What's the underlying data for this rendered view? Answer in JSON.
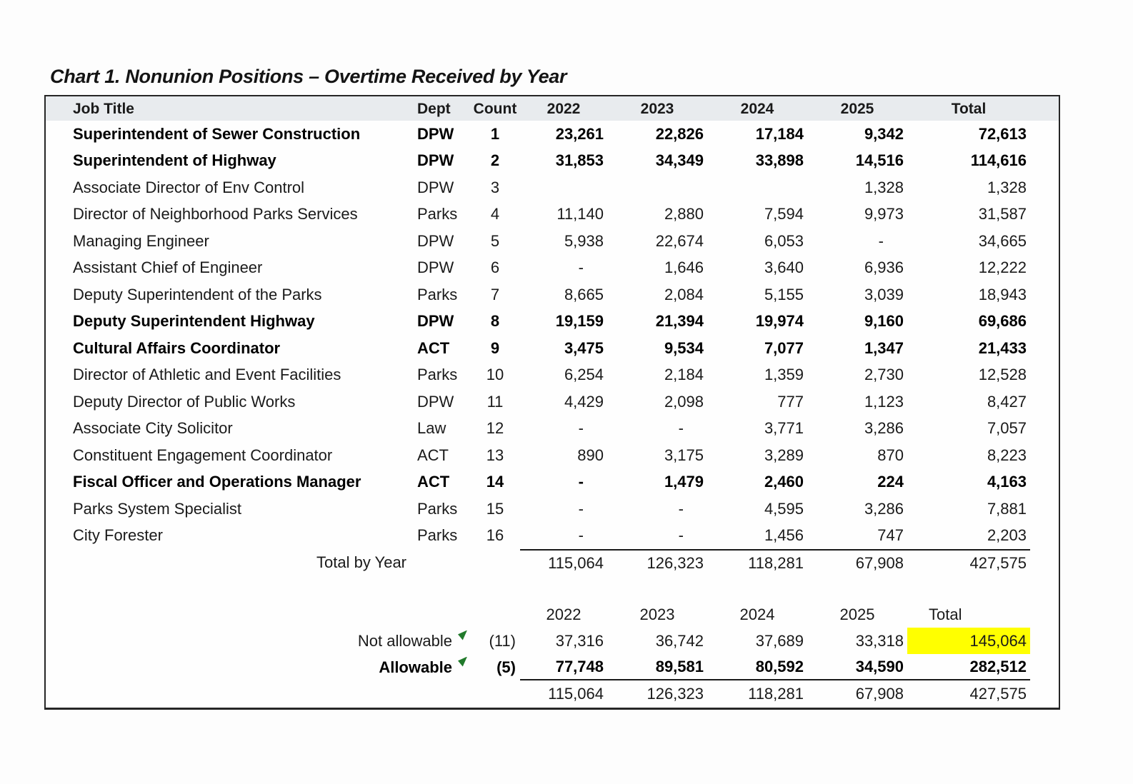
{
  "title": "Chart 1. Nonunion Positions – Overtime Received by Year",
  "table": {
    "columns": [
      "Job Title",
      "Dept",
      "Count",
      "2022",
      "2023",
      "2024",
      "2025",
      "Total"
    ],
    "rows": [
      {
        "job_title": "Superintendent of Sewer Construction",
        "dept": "DPW",
        "count": "1",
        "y2022": "23,261",
        "y2023": "22,826",
        "y2024": "17,184",
        "y2025": "9,342",
        "total": "72,613",
        "bold": true
      },
      {
        "job_title": "Superintendent of Highway",
        "dept": "DPW",
        "count": "2",
        "y2022": "31,853",
        "y2023": "34,349",
        "y2024": "33,898",
        "y2025": "14,516",
        "total": "114,616",
        "bold": true
      },
      {
        "job_title": "Associate Director of Env Control",
        "dept": "DPW",
        "count": "3",
        "y2022": "",
        "y2023": "",
        "y2024": "",
        "y2025": "1,328",
        "total": "1,328",
        "bold": false
      },
      {
        "job_title": "Director of Neighborhood Parks Services",
        "dept": "Parks",
        "count": "4",
        "y2022": "11,140",
        "y2023": "2,880",
        "y2024": "7,594",
        "y2025": "9,973",
        "total": "31,587",
        "bold": false
      },
      {
        "job_title": "Managing Engineer",
        "dept": "DPW",
        "count": "5",
        "y2022": "5,938",
        "y2023": "22,674",
        "y2024": "6,053",
        "y2025": "-",
        "total": "34,665",
        "bold": false
      },
      {
        "job_title": "Assistant Chief of Engineer",
        "dept": "DPW",
        "count": "6",
        "y2022": "-",
        "y2023": "1,646",
        "y2024": "3,640",
        "y2025": "6,936",
        "total": "12,222",
        "bold": false
      },
      {
        "job_title": "Deputy Superintendent of the Parks",
        "dept": "Parks",
        "count": "7",
        "y2022": "8,665",
        "y2023": "2,084",
        "y2024": "5,155",
        "y2025": "3,039",
        "total": "18,943",
        "bold": false
      },
      {
        "job_title": "Deputy Superintendent Highway",
        "dept": "DPW",
        "count": "8",
        "y2022": "19,159",
        "y2023": "21,394",
        "y2024": "19,974",
        "y2025": "9,160",
        "total": "69,686",
        "bold": true
      },
      {
        "job_title": "Cultural Affairs Coordinator",
        "dept": "ACT",
        "count": "9",
        "y2022": "3,475",
        "y2023": "9,534",
        "y2024": "7,077",
        "y2025": "1,347",
        "total": "21,433",
        "bold": true
      },
      {
        "job_title": "Director of Athletic and Event Facilities",
        "dept": "Parks",
        "count": "10",
        "y2022": "6,254",
        "y2023": "2,184",
        "y2024": "1,359",
        "y2025": "2,730",
        "total": "12,528",
        "bold": false
      },
      {
        "job_title": "Deputy Director of Public Works",
        "dept": "DPW",
        "count": "11",
        "y2022": "4,429",
        "y2023": "2,098",
        "y2024": "777",
        "y2025": "1,123",
        "total": "8,427",
        "bold": false
      },
      {
        "job_title": "Associate City Solicitor",
        "dept": "Law",
        "count": "12",
        "y2022": "-",
        "y2023": "-",
        "y2024": "3,771",
        "y2025": "3,286",
        "total": "7,057",
        "bold": false
      },
      {
        "job_title": "Constituent Engagement Coordinator",
        "dept": "ACT",
        "count": "13",
        "y2022": "890",
        "y2023": "3,175",
        "y2024": "3,289",
        "y2025": "870",
        "total": "8,223",
        "bold": false
      },
      {
        "job_title": "Fiscal Officer and Operations Manager",
        "dept": "ACT",
        "count": "14",
        "y2022": "-",
        "y2023": "1,479",
        "y2024": "2,460",
        "y2025": "224",
        "total": "4,163",
        "bold": true
      },
      {
        "job_title": "Parks System Specialist",
        "dept": "Parks",
        "count": "15",
        "y2022": "-",
        "y2023": "-",
        "y2024": "4,595",
        "y2025": "3,286",
        "total": "7,881",
        "bold": false
      },
      {
        "job_title": "City Forester",
        "dept": "Parks",
        "count": "16",
        "y2022": "-",
        "y2023": "-",
        "y2024": "1,456",
        "y2025": "747",
        "total": "2,203",
        "bold": false
      }
    ],
    "total_by_year": {
      "label": "Total by Year",
      "y2022": "115,064",
      "y2023": "126,323",
      "y2024": "118,281",
      "y2025": "67,908",
      "total": "427,575"
    }
  },
  "summary": {
    "columns": [
      "2022",
      "2023",
      "2024",
      "2025",
      "Total"
    ],
    "rows": [
      {
        "label": "Not allowable",
        "count": "(11)",
        "y2022": "37,316",
        "y2023": "36,742",
        "y2024": "37,689",
        "y2025": "33,318",
        "total": "145,064",
        "bold": false,
        "highlight_total": true,
        "marker": "green-flag-icon"
      },
      {
        "label": "Allowable",
        "count": "(5)",
        "y2022": "77,748",
        "y2023": "89,581",
        "y2024": "80,592",
        "y2025": "34,590",
        "total": "282,512",
        "bold": true,
        "highlight_total": false,
        "marker": "green-flag-icon"
      }
    ],
    "grand_total": {
      "y2022": "115,064",
      "y2023": "126,323",
      "y2024": "118,281",
      "y2025": "67,908",
      "total": "427,575"
    }
  },
  "colors": {
    "highlight_yellow": "#ffff00",
    "marker_green": "#217a2b",
    "header_bg": "#e8ebee",
    "text": "#1a1a1a"
  }
}
